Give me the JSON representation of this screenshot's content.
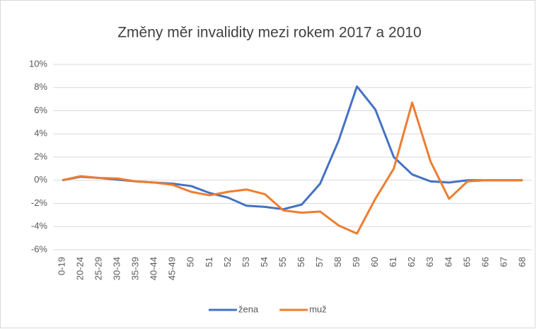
{
  "chart_data": {
    "type": "line",
    "title": "Změny měr invalidity mezi rokem 2017 a 2010",
    "categories": [
      "0-19",
      "20-24",
      "25-29",
      "30-34",
      "35-39",
      "40-44",
      "45-49",
      "50",
      "51",
      "52",
      "53",
      "54",
      "55",
      "56",
      "57",
      "58",
      "59",
      "60",
      "61",
      "62",
      "63",
      "64",
      "65",
      "66",
      "67",
      "68"
    ],
    "series": [
      {
        "name": "žena",
        "color": "#4472c4",
        "values": [
          0,
          0.3,
          0.2,
          0.05,
          -0.1,
          -0.2,
          -0.3,
          -0.5,
          -1.1,
          -1.5,
          -2.2,
          -2.3,
          -2.5,
          -2.1,
          -0.3,
          3.4,
          8.1,
          6.1,
          2.0,
          0.5,
          -0.1,
          -0.2,
          0,
          0,
          0,
          0
        ]
      },
      {
        "name": "muž",
        "color": "#ed7d31",
        "values": [
          0,
          0.35,
          0.2,
          0.15,
          -0.1,
          -0.2,
          -0.4,
          -1.0,
          -1.3,
          -1.0,
          -0.8,
          -1.2,
          -2.6,
          -2.8,
          -2.7,
          -3.9,
          -4.6,
          -1.6,
          1.0,
          6.7,
          1.6,
          -1.6,
          -0.1,
          0,
          0,
          0
        ]
      }
    ],
    "ylim": [
      -6,
      10
    ],
    "yticks": [
      {
        "value": -6,
        "label": "-6%"
      },
      {
        "value": -4,
        "label": "-4%"
      },
      {
        "value": -2,
        "label": "-2%"
      },
      {
        "value": 0,
        "label": "0%"
      },
      {
        "value": 2,
        "label": "2%"
      },
      {
        "value": 4,
        "label": "4%"
      },
      {
        "value": 6,
        "label": "6%"
      },
      {
        "value": 8,
        "label": "8%"
      },
      {
        "value": 10,
        "label": "10%"
      }
    ],
    "grid": true,
    "legend": "bottom"
  }
}
